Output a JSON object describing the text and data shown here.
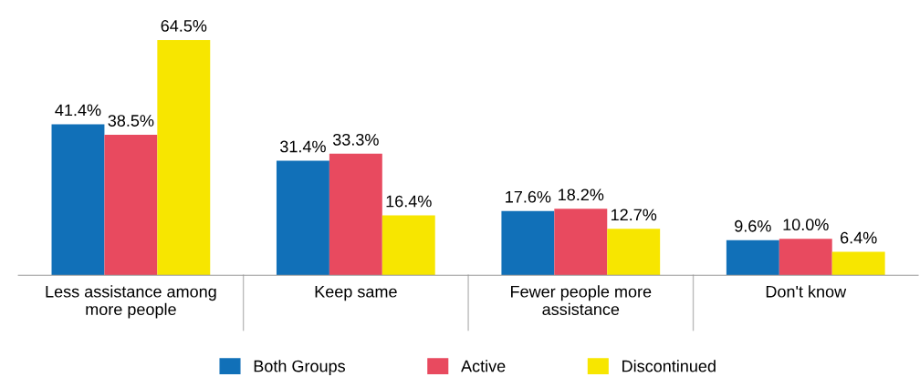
{
  "chart_data": {
    "type": "bar",
    "categories": [
      "Less assistance among\nmore people",
      "Keep same",
      "Fewer people more\nassistance",
      "Don't know"
    ],
    "series": [
      {
        "name": "Both Groups",
        "color": "#1170b8",
        "values": [
          41.4,
          31.4,
          17.6,
          9.6
        ],
        "value_labels": [
          "41.4%",
          "31.4%",
          "17.6%",
          "9.6%"
        ]
      },
      {
        "name": "Active",
        "color": "#e84a5f",
        "values": [
          38.5,
          33.3,
          18.2,
          10.0
        ],
        "value_labels": [
          "38.5%",
          "33.3%",
          "18.2%",
          "10.0%"
        ]
      },
      {
        "name": "Discontinued",
        "color": "#f7e600",
        "values": [
          64.5,
          16.4,
          12.7,
          6.4
        ],
        "value_labels": [
          "64.5%",
          "16.4%",
          "12.7%",
          "6.4%"
        ]
      }
    ],
    "legend": "bottom",
    "grid": false
  }
}
